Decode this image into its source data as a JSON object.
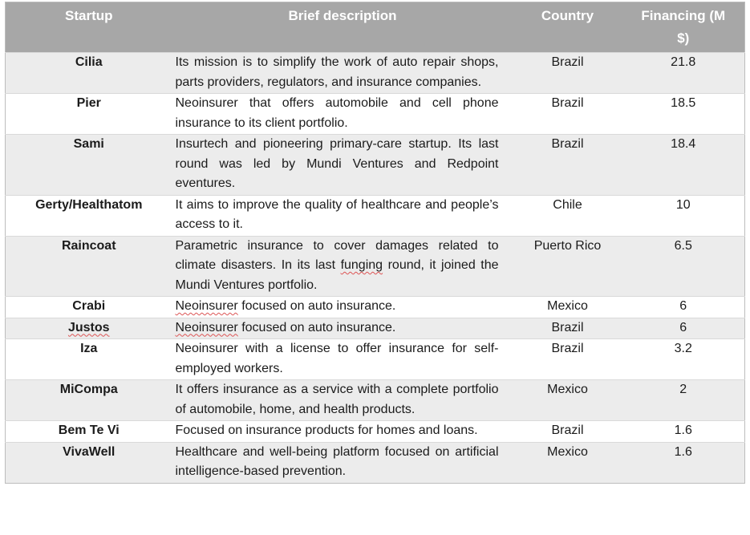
{
  "colors": {
    "header_bg": "#a7a7a7",
    "header_text": "#ffffff",
    "band_bg": "#ececec",
    "row_bg": "#ffffff",
    "border_outer": "#bdbdbd",
    "border_inner": "#d9d9d9",
    "body_text": "#1b1b1b",
    "squiggle": "#dd5555"
  },
  "table": {
    "columns": [
      {
        "id": "startup",
        "label": "Startup"
      },
      {
        "id": "description",
        "label": "Brief description"
      },
      {
        "id": "country",
        "label": "Country"
      },
      {
        "id": "financing",
        "label": "Financing (M $)"
      }
    ],
    "rows": [
      {
        "startup": {
          "text": "Cilia",
          "misspelled": false
        },
        "description": [
          {
            "text": "Its mission is to simplify the work of auto repair shops, parts providers, regulators, and insurance companies.",
            "misspelled": false
          }
        ],
        "country": "Brazil",
        "financing": "21.8"
      },
      {
        "startup": {
          "text": "Pier",
          "misspelled": false
        },
        "description": [
          {
            "text": "Neoinsurer that offers automobile and cell phone insurance to its client portfolio.",
            "misspelled": false
          }
        ],
        "country": "Brazil",
        "financing": "18.5"
      },
      {
        "startup": {
          "text": "Sami",
          "misspelled": false
        },
        "description": [
          {
            "text": "Insurtech and pioneering primary-care startup. Its last round was led by Mundi Ventures and Redpoint eventures.",
            "misspelled": false
          }
        ],
        "country": "Brazil",
        "financing": "18.4"
      },
      {
        "startup": {
          "text": "Gerty/Healthatom",
          "misspelled": false
        },
        "description": [
          {
            "text": "It aims to improve the quality of healthcare and people’s access to it.",
            "misspelled": false
          }
        ],
        "country": "Chile",
        "financing": "10"
      },
      {
        "startup": {
          "text": "Raincoat",
          "misspelled": false
        },
        "description": [
          {
            "text": "Parametric insurance to cover damages related to climate disasters. In its last ",
            "misspelled": false
          },
          {
            "text": "funging",
            "misspelled": true
          },
          {
            "text": " round, it joined the Mundi Ventures portfolio.",
            "misspelled": false
          }
        ],
        "country": "Puerto Rico",
        "financing": "6.5"
      },
      {
        "startup": {
          "text": "Crabi",
          "misspelled": false
        },
        "description": [
          {
            "text": "Neoinsurer",
            "misspelled": true
          },
          {
            "text": " focused on auto insurance.",
            "misspelled": false
          }
        ],
        "country": "Mexico",
        "financing": "6"
      },
      {
        "startup": {
          "text": "Justos",
          "misspelled": true
        },
        "description": [
          {
            "text": "Neoinsurer",
            "misspelled": true
          },
          {
            "text": " focused on auto insurance.",
            "misspelled": false
          }
        ],
        "country": "Brazil",
        "financing": "6"
      },
      {
        "startup": {
          "text": "Iza",
          "misspelled": false
        },
        "description": [
          {
            "text": "Neoinsurer with a license to offer insurance for self-employed workers.",
            "misspelled": false
          }
        ],
        "country": "Brazil",
        "financing": "3.2"
      },
      {
        "startup": {
          "text": "MiCompa",
          "misspelled": false
        },
        "description": [
          {
            "text": "It offers insurance as a service with a complete portfolio of automobile, home, and health products.",
            "misspelled": false
          }
        ],
        "country": "Mexico",
        "financing": "2"
      },
      {
        "startup": {
          "text": "Bem Te Vi",
          "misspelled": false
        },
        "description": [
          {
            "text": "Focused on insurance products for homes and loans.",
            "misspelled": false
          }
        ],
        "country": "Brazil",
        "financing": "1.6"
      },
      {
        "startup": {
          "text": "VivaWell",
          "misspelled": false
        },
        "description": [
          {
            "text": "Healthcare and well-being platform focused on artificial intelligence-based prevention.",
            "misspelled": false
          }
        ],
        "country": "Mexico",
        "financing": "1.6"
      }
    ]
  }
}
